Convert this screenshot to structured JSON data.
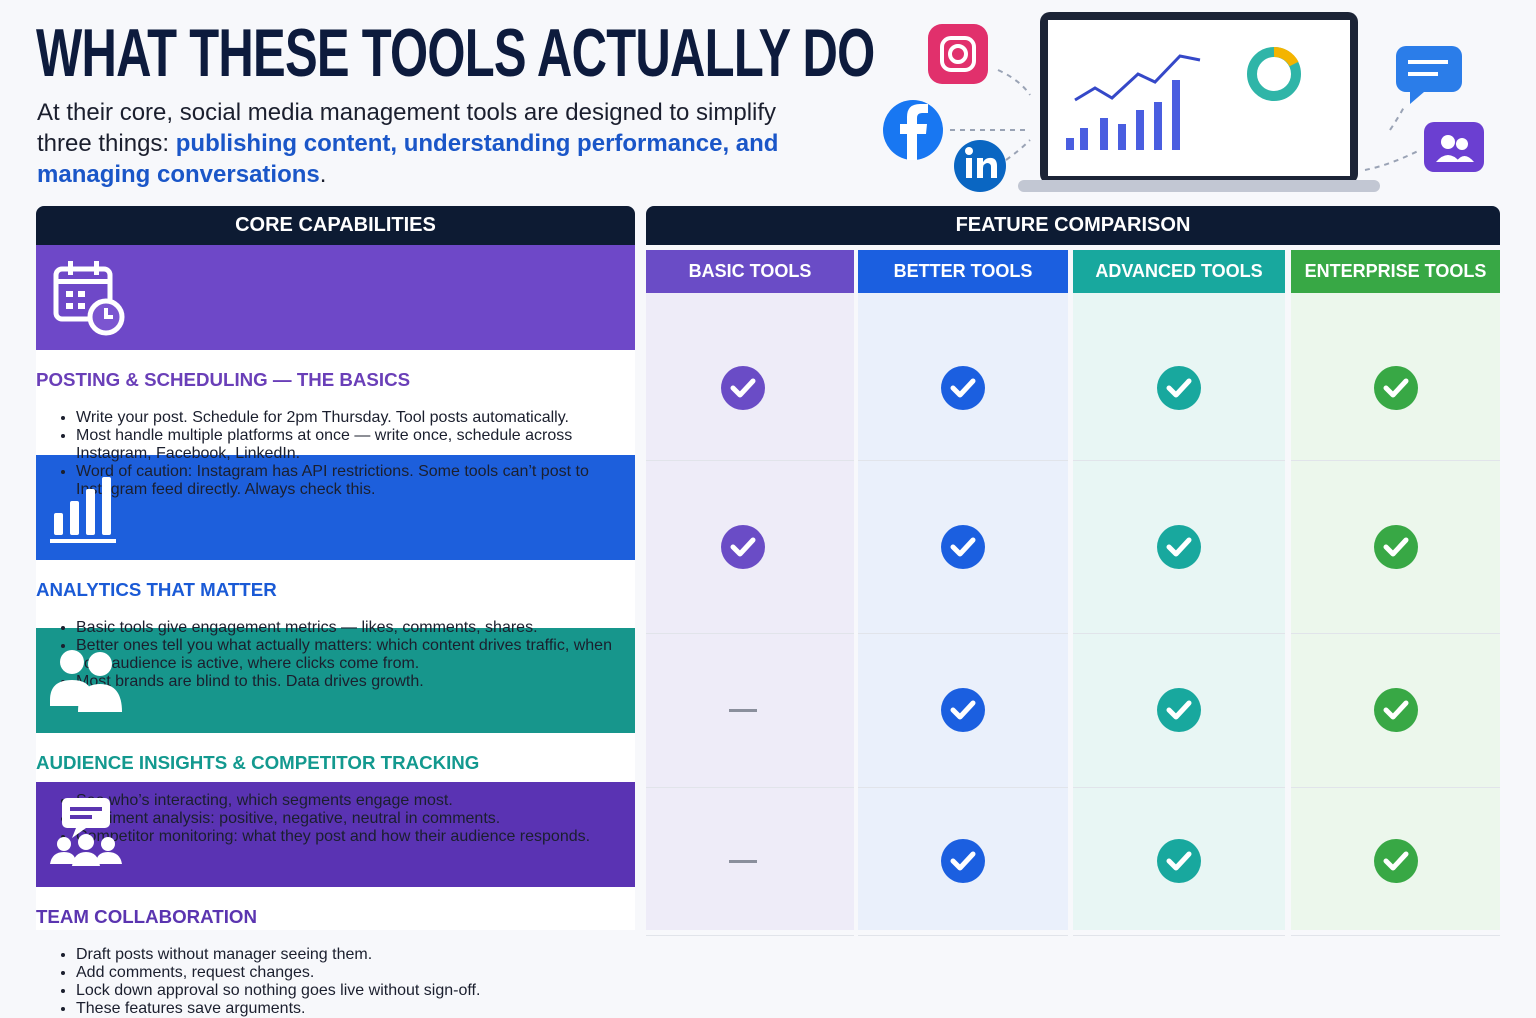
{
  "header": {
    "title": "WHAT THESE TOOLS ACTUALLY DO",
    "intro": "At their core, social media management tools are designed to simplify three things: ",
    "intro_highlight": "publishing content, understanding performance, and managing conversations",
    "intro_end": "."
  },
  "left_panel": {
    "heading": "CORE CAPABILITIES"
  },
  "right_panel": {
    "heading": "FEATURE COMPARISON",
    "columns": [
      {
        "label": "BASIC TOOLS",
        "color": "#6a4cc6",
        "tint": "#eeecf8"
      },
      {
        "label": "BETTER TOOLS",
        "color": "#1b5fe0",
        "tint": "#eaf0fb"
      },
      {
        "label": "ADVANCED TOOLS",
        "color": "#18a89e",
        "tint": "#e8f6f4"
      },
      {
        "label": "ENTERPRISE TOOLS",
        "color": "#38a845",
        "tint": "#ecf7ec"
      }
    ]
  },
  "rows": [
    {
      "title": "POSTING & SCHEDULING — THE BASICS",
      "color": "#6a3fb8",
      "icon": "calendar",
      "bullets": [
        "Write your post. Schedule for 2pm Thursday. Tool posts automatically.",
        "Most handle multiple platforms at once — write once, schedule across Instagram, Facebook, LinkedIn.",
        "Word of caution: Instagram has API restrictions. Some tools can’t post to Instagram feed directly. Always check this."
      ],
      "support": [
        true,
        true,
        true,
        true
      ]
    },
    {
      "title": "ANALYTICS THAT MATTER",
      "color": "#1a5ad6",
      "icon": "chart",
      "bullets": [
        "Basic tools give engagement metrics — likes, comments, shares.",
        "Better ones tell you what actually matters: which content drives traffic, when your audience is active, where clicks come from.",
        "Most brands are blind to this. Data drives growth."
      ],
      "support": [
        true,
        true,
        true,
        true
      ]
    },
    {
      "title": "AUDIENCE INSIGHTS & COMPETITOR TRACKING",
      "color": "#13998f",
      "icon": "people",
      "bullets": [
        "See who’s interacting, which segments engage most.",
        "Sentiment analysis: positive, negative, neutral in comments.",
        "Competitor monitoring: what they post and how their audience responds."
      ],
      "support": [
        false,
        true,
        true,
        true
      ]
    },
    {
      "title": "TEAM COLLABORATION",
      "color": "#5b35b0",
      "icon": "team",
      "bullets": [
        "Draft posts without manager seeing them.",
        "Add comments, request changes.",
        "Lock down approval so nothing goes live without sign-off.",
        "These features save arguments."
      ],
      "support": [
        false,
        true,
        true,
        true
      ]
    }
  ]
}
